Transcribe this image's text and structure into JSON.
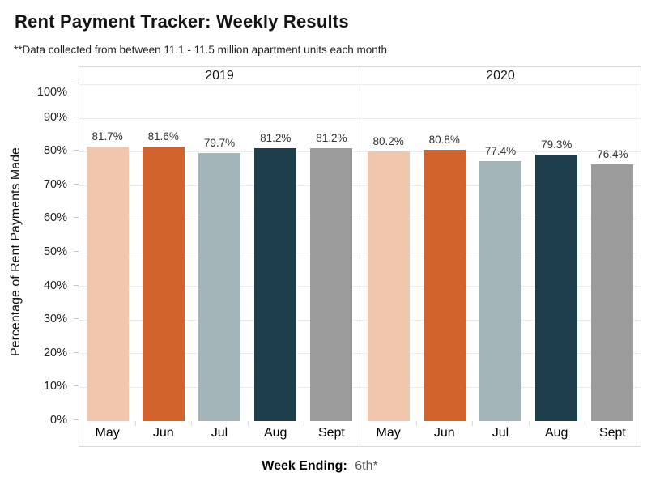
{
  "header": {
    "title": "Rent Payment Tracker: Weekly Results",
    "subtitle": "**Data collected from between 11.1 - 11.5 million apartment units each month"
  },
  "axis": {
    "y_title": "Percentage of Rent Payments Made",
    "caption_label": "Week Ending:",
    "caption_value": "6th*"
  },
  "chart_data": {
    "type": "bar",
    "title": "Rent Payment Tracker: Weekly Results",
    "subtitle": "**Data collected from between 11.1 - 11.5 million apartment units each month",
    "ylabel": "Percentage of Rent Payments Made",
    "xlabel": "Week Ending: 6th*",
    "ylim": [
      0,
      100
    ],
    "grid": true,
    "yticks": [
      {
        "value": 100,
        "label": "100%"
      },
      {
        "value": 90,
        "label": "90%"
      },
      {
        "value": 80,
        "label": "80%"
      },
      {
        "value": 70,
        "label": "70%"
      },
      {
        "value": 60,
        "label": "60%"
      },
      {
        "value": 50,
        "label": "50%"
      },
      {
        "value": 40,
        "label": "40%"
      },
      {
        "value": 30,
        "label": "30%"
      },
      {
        "value": 20,
        "label": "20%"
      },
      {
        "value": 10,
        "label": "10%"
      },
      {
        "value": 0,
        "label": "0%"
      }
    ],
    "categories": [
      "May",
      "Jun",
      "Jul",
      "Aug",
      "Sept"
    ],
    "bar_colors": [
      "#f2c6ad",
      "#d3632c",
      "#a3b5b8",
      "#1c3f4b",
      "#9b9b9b"
    ],
    "groups": [
      {
        "label": "2019",
        "values": [
          81.7,
          81.6,
          79.7,
          81.2,
          81.2
        ],
        "value_labels": [
          "81.7%",
          "81.6%",
          "79.7%",
          "81.2%",
          "81.2%"
        ]
      },
      {
        "label": "2020",
        "values": [
          80.2,
          80.8,
          77.4,
          79.3,
          76.4
        ],
        "value_labels": [
          "80.2%",
          "80.8%",
          "77.4%",
          "79.3%",
          "76.4%"
        ]
      }
    ]
  }
}
